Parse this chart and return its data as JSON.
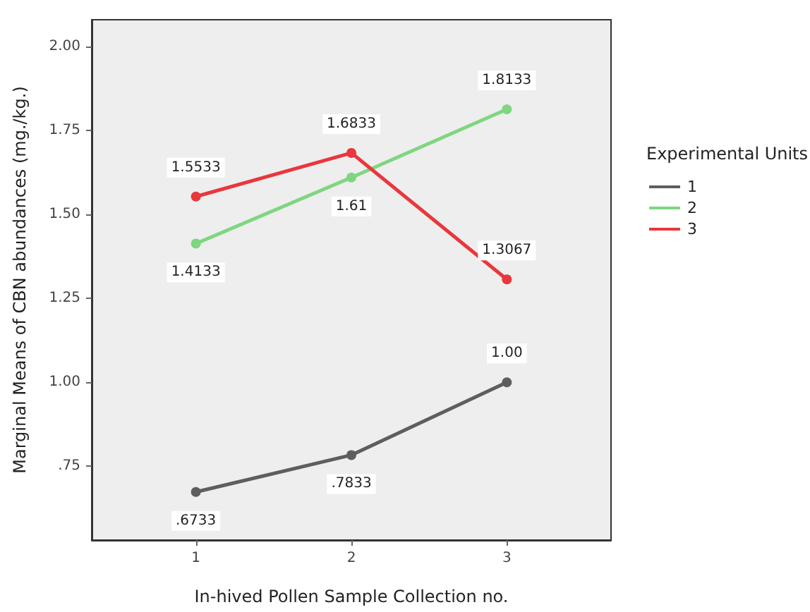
{
  "chart_data": {
    "type": "line",
    "xlabel": "In-hived Pollen Sample Collection no.",
    "ylabel": "Marginal Means of CBN abundances (mg./kg.)",
    "legend_title": "Experimental Units",
    "x": [
      1,
      2,
      3
    ],
    "xlim": [
      0.33,
      3.67
    ],
    "xticks": [
      1,
      2,
      3
    ],
    "ylim": [
      0.53,
      2.08
    ],
    "yticks": [
      {
        "value": 0.75,
        "label": ".75"
      },
      {
        "value": 1,
        "label": "1.00"
      },
      {
        "value": 1.25,
        "label": "1.25"
      },
      {
        "value": 1.5,
        "label": "1.50"
      },
      {
        "value": 1.75,
        "label": "1.75"
      },
      {
        "value": 2,
        "label": "2.00"
      }
    ],
    "series": [
      {
        "name": "1",
        "color": "#5e5e5e",
        "values": [
          0.6733,
          0.7833,
          1.0
        ],
        "value_labels": [
          ".6733",
          ".7833",
          "1.00"
        ]
      },
      {
        "name": "2",
        "color": "#7fd67f",
        "values": [
          1.4133,
          1.61,
          1.8133
        ],
        "value_labels": [
          "1.4133",
          "1.61",
          "1.8133"
        ]
      },
      {
        "name": "3",
        "color": "#e8373d",
        "values": [
          1.5533,
          1.6833,
          1.3067
        ],
        "value_labels": [
          "1.5533",
          "1.6833",
          "1.3067"
        ]
      }
    ],
    "grid": false,
    "legend": "right",
    "marker": "circle",
    "line_style": "solid"
  }
}
